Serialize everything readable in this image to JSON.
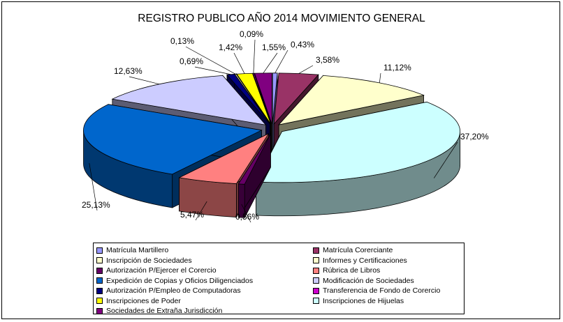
{
  "chart_data": {
    "type": "pie",
    "title": "REGISTRO PUBLICO AÑO 2014 MOVIMIENTO GENERAL",
    "legend_placement": "bottom",
    "slices": [
      {
        "label": "Matrícula Martillero",
        "value": 0.43,
        "value_label": "0,43%",
        "color": "#9999ff"
      },
      {
        "label": "Matrícula Corerciante",
        "value": 3.58,
        "value_label": "3,58%",
        "color": "#993366"
      },
      {
        "label": "Informes y Certificaciones",
        "value": 11.12,
        "value_label": "11,12%",
        "color": "#ffffcc"
      },
      {
        "label": "Inscripciones de Hijuelas",
        "value": 37.2,
        "value_label": "37,20%",
        "color": "#ccffff"
      },
      {
        "label": "Autorización P/Ejercer el Corercio",
        "value": 0.56,
        "value_label": "0,56%",
        "color": "#660066"
      },
      {
        "label": "Rúbrica de Libros",
        "value": 5.47,
        "value_label": "5,47%",
        "color": "#ff8080"
      },
      {
        "label": "Expedición de Copias y Oficios Diligenciados",
        "value": 25.13,
        "value_label": "25,13%",
        "color": "#0066cc"
      },
      {
        "label": "Modificación de Sociedades",
        "value": 12.63,
        "value_label": "12,63%",
        "color": "#ccccff"
      },
      {
        "label": "Autorización P/Empleo de Computadoras",
        "value": 0.69,
        "value_label": "0,69%",
        "color": "#000080"
      },
      {
        "label": "Inscripción de Sociedades",
        "value": 0.13,
        "value_label": "0,13%",
        "color": "#ffffcc"
      },
      {
        "label": "Inscripciones de Poder",
        "value": 1.42,
        "value_label": "1,42%",
        "color": "#ffff00"
      },
      {
        "label": "Transferencia de Fondo de Corercio",
        "value": 0.09,
        "value_label": "0,09%",
        "color": "#cc00cc"
      },
      {
        "label": "Sociedades de Extraña Jurisdicción",
        "value": 1.55,
        "value_label": "1,55%",
        "color": "#800080"
      }
    ],
    "legend": [
      {
        "label": "Matrícula Martillero",
        "color": "#9999ff"
      },
      {
        "label": "Matrícula Corerciante",
        "color": "#993366"
      },
      {
        "label": "Inscripción de Sociedades",
        "color": "#ffffcc"
      },
      {
        "label": "Informes y Certificaciones",
        "color": "#ffffcc"
      },
      {
        "label": "Autorización P/Ejercer el Corercio",
        "color": "#660066"
      },
      {
        "label": "Rúbrica de Libros",
        "color": "#ff8080"
      },
      {
        "label": "Expedición de Copias y Oficios Diligenciados",
        "color": "#0066cc"
      },
      {
        "label": "Modificación de Sociedades",
        "color": "#ccccff"
      },
      {
        "label": "Autorización P/Empleo de Computadoras",
        "color": "#000080"
      },
      {
        "label": "Transferencia de Fondo de Corercio",
        "color": "#cc00cc"
      },
      {
        "label": "Inscripciones de Poder",
        "color": "#ffff00"
      },
      {
        "label": "Inscripciones de Hijuelas",
        "color": "#ccffff"
      },
      {
        "label": "Sociedades de Extraña Jurisdicción",
        "color": "#800080"
      }
    ]
  }
}
